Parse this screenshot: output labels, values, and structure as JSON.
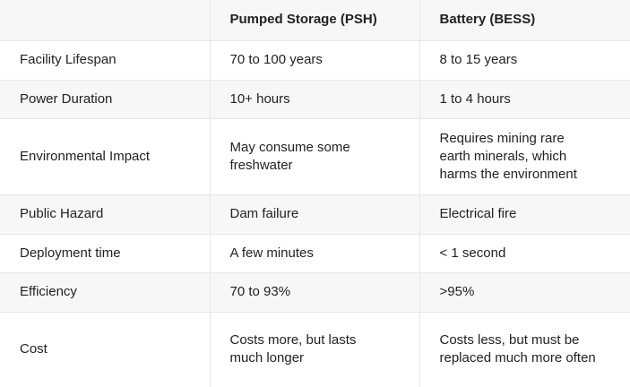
{
  "table": {
    "columns": [
      "Pumped Storage (PSH)",
      "Battery (BESS)"
    ],
    "rows": [
      {
        "label": "Facility Lifespan",
        "values": [
          "70 to 100 years",
          "8 to 15 years"
        ]
      },
      {
        "label": "Power Duration",
        "values": [
          "10+ hours",
          "1 to 4 hours"
        ]
      },
      {
        "label": "Environmental Impact",
        "values": [
          "May consume some freshwater",
          "Requires mining rare earth minerals, which harms the environment"
        ]
      },
      {
        "label": "Public Hazard",
        "values": [
          "Dam failure",
          "Electrical fire"
        ]
      },
      {
        "label": "Deployment time",
        "values": [
          "A few minutes",
          "< 1 second"
        ]
      },
      {
        "label": "Efficiency",
        "values": [
          "70 to 93%",
          ">95%"
        ]
      },
      {
        "label": "Cost",
        "values": [
          "Costs more, but lasts much longer",
          "Costs less, but must be replaced much more often"
        ]
      }
    ]
  }
}
